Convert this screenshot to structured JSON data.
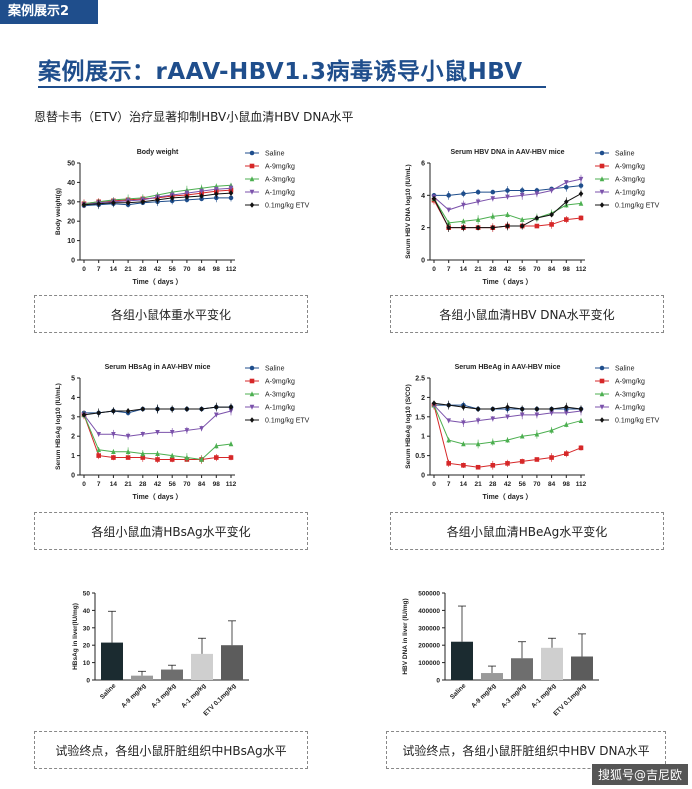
{
  "header": {
    "tag": "案例展示2",
    "title": "案例展示：rAAV-HBV1.3病毒诱导小鼠HBV",
    "subtitle": "恩替卡韦（ETV）治疗显著抑制HBV小鼠血清HBV DNA水平"
  },
  "captions": {
    "c1": "各组小鼠体重水平变化",
    "c2": "各组小鼠血清HBV DNA水平变化",
    "c3": "各组小鼠血清HBsAg水平变化",
    "c4": "各组小鼠血清HBeAg水平变化",
    "c5": "试验终点，各组小鼠肝脏组织中HBsAg水平",
    "c6": "试验终点，各组小鼠肝脏组织中HBV DNA水平"
  },
  "watermark": "搜狐号@吉尼欧",
  "colors": {
    "saline": "#1f4e8c",
    "a9": "#d62728",
    "a3": "#4caf50",
    "a1": "#7b52ab",
    "etv": "#111111"
  },
  "legend": [
    "Saline",
    "A-9mg/kg",
    "A-3mg/kg",
    "A-1mg/kg",
    "0.1mg/kg ETV"
  ],
  "chart_data": [
    {
      "id": "body-weight",
      "type": "line",
      "title": "Body weight",
      "xlabel": "Time（ days ）",
      "ylabel": "Body weight(g)",
      "ylim": [
        0,
        50
      ],
      "yticks": [
        0,
        10,
        20,
        30,
        40,
        50
      ],
      "x": [
        0,
        7,
        14,
        21,
        28,
        42,
        56,
        70,
        84,
        98,
        112
      ],
      "series": [
        {
          "name": "Saline",
          "values": [
            28,
            28.5,
            29,
            28.5,
            29.5,
            30,
            30.5,
            31,
            31.5,
            32,
            32
          ]
        },
        {
          "name": "A-9mg/kg",
          "values": [
            29,
            30,
            30.5,
            31,
            31.5,
            32,
            33,
            33.5,
            34.5,
            35.5,
            36
          ]
        },
        {
          "name": "A-3mg/kg",
          "values": [
            29,
            30,
            31,
            31.5,
            32,
            33.5,
            35,
            36,
            37,
            38,
            38.5
          ]
        },
        {
          "name": "A-1mg/kg",
          "values": [
            28.5,
            29.5,
            30,
            30.5,
            31,
            32.5,
            33.5,
            34.5,
            35.5,
            36.5,
            37
          ]
        },
        {
          "name": "0.1mg/kg ETV",
          "values": [
            28.5,
            29,
            29.5,
            29.5,
            30,
            31,
            32,
            32.5,
            33,
            34,
            34.5
          ]
        }
      ]
    },
    {
      "id": "hbv-dna",
      "type": "line",
      "title": "Serum HBV DNA in AAV-HBV mice",
      "xlabel": "Time（ days ）",
      "ylabel": "Serum HBV DNA log10 (IU/mL)",
      "ylim": [
        0,
        6
      ],
      "yticks": [
        0,
        2,
        4,
        6
      ],
      "x": [
        0,
        7,
        14,
        21,
        28,
        42,
        56,
        70,
        84,
        98,
        112
      ],
      "series": [
        {
          "name": "Saline",
          "values": [
            4,
            4,
            4.1,
            4.2,
            4.2,
            4.3,
            4.3,
            4.3,
            4.4,
            4.5,
            4.6
          ]
        },
        {
          "name": "A-9mg/kg",
          "values": [
            3.7,
            2,
            2,
            2,
            2,
            2.1,
            2.1,
            2.1,
            2.2,
            2.5,
            2.6
          ]
        },
        {
          "name": "A-3mg/kg",
          "values": [
            3.8,
            2.3,
            2.4,
            2.5,
            2.7,
            2.8,
            2.5,
            2.6,
            2.9,
            3.4,
            3.5
          ]
        },
        {
          "name": "A-1mg/kg",
          "values": [
            3.9,
            3.1,
            3.4,
            3.6,
            3.8,
            3.9,
            4,
            4.1,
            4.3,
            4.8,
            5
          ]
        },
        {
          "name": "0.1mg/kg ETV",
          "values": [
            3.8,
            2,
            2,
            2,
            2,
            2.1,
            2.1,
            2.6,
            2.8,
            3.6,
            4.1
          ]
        }
      ]
    },
    {
      "id": "hbsag",
      "type": "line",
      "title": "Serum HBsAg in AAV-HBV mice",
      "xlabel": "Time（ days ）",
      "ylabel": "Serum HBsAg log10 (IU/mL)",
      "ylim": [
        0,
        5
      ],
      "yticks": [
        0,
        1,
        2,
        3,
        4,
        5
      ],
      "x": [
        0,
        7,
        14,
        21,
        28,
        42,
        56,
        70,
        84,
        98,
        112
      ],
      "series": [
        {
          "name": "Saline",
          "values": [
            3.2,
            3.2,
            3.3,
            3.2,
            3.4,
            3.4,
            3.4,
            3.4,
            3.4,
            3.5,
            3.5
          ]
        },
        {
          "name": "A-9mg/kg",
          "values": [
            3.1,
            1,
            0.9,
            0.9,
            0.9,
            0.8,
            0.8,
            0.8,
            0.8,
            0.9,
            0.9
          ]
        },
        {
          "name": "A-3mg/kg",
          "values": [
            3.1,
            1.3,
            1.2,
            1.2,
            1.1,
            1.1,
            1,
            0.9,
            0.8,
            1.5,
            1.6
          ]
        },
        {
          "name": "A-1mg/kg",
          "values": [
            3.1,
            2.1,
            2.1,
            2,
            2.1,
            2.2,
            2.2,
            2.3,
            2.4,
            3.1,
            3.3
          ]
        },
        {
          "name": "0.1mg/kg ETV",
          "values": [
            3.1,
            3.2,
            3.3,
            3.3,
            3.4,
            3.4,
            3.4,
            3.4,
            3.4,
            3.5,
            3.5
          ]
        }
      ]
    },
    {
      "id": "hbeag",
      "type": "line",
      "title": "Serum HBeAg in AAV-HBV mice",
      "xlabel": "Time（ days ）",
      "ylabel": "Serum HBeAg log10 (S/CO)",
      "ylim": [
        0,
        2.5
      ],
      "yticks": [
        0,
        0.5,
        1,
        1.5,
        2,
        2.5
      ],
      "x": [
        0,
        7,
        14,
        21,
        28,
        42,
        56,
        70,
        84,
        98,
        112
      ],
      "series": [
        {
          "name": "Saline",
          "values": [
            1.8,
            1.8,
            1.8,
            1.7,
            1.7,
            1.7,
            1.7,
            1.7,
            1.7,
            1.7,
            1.7
          ]
        },
        {
          "name": "A-9mg/kg",
          "values": [
            1.8,
            0.3,
            0.25,
            0.2,
            0.25,
            0.3,
            0.35,
            0.4,
            0.45,
            0.55,
            0.7
          ]
        },
        {
          "name": "A-3mg/kg",
          "values": [
            1.8,
            0.9,
            0.8,
            0.8,
            0.85,
            0.9,
            1,
            1.05,
            1.15,
            1.3,
            1.4
          ]
        },
        {
          "name": "A-1mg/kg",
          "values": [
            1.8,
            1.4,
            1.35,
            1.4,
            1.45,
            1.5,
            1.55,
            1.55,
            1.6,
            1.6,
            1.65
          ]
        },
        {
          "name": "0.1mg/kg ETV",
          "values": [
            1.85,
            1.8,
            1.75,
            1.7,
            1.7,
            1.75,
            1.7,
            1.7,
            1.7,
            1.75,
            1.7
          ]
        }
      ]
    },
    {
      "id": "liver-hbsag",
      "type": "bar",
      "ylabel": "HBsAg in liver(IU/mg)",
      "ylim": [
        0,
        50
      ],
      "yticks": [
        0,
        10,
        20,
        30,
        40,
        50
      ],
      "categories": [
        "Saline",
        "A-9 mg/kg",
        "A-3 mg/kg",
        "A-1 mg/kg",
        "ETV 0.1mg/kg"
      ],
      "values": [
        21.5,
        2.5,
        6,
        15,
        20
      ],
      "errors": [
        18,
        2.5,
        2.5,
        9,
        14
      ]
    },
    {
      "id": "liver-hbvdna",
      "type": "bar",
      "ylabel": "HBV DNA in liver (IU/mg)",
      "ylim": [
        0,
        500000
      ],
      "yticks": [
        0,
        100000,
        200000,
        300000,
        400000,
        500000
      ],
      "categories": [
        "Saline",
        "A-9 mg/kg",
        "A-3 mg/kg",
        "A-1 mg/kg",
        "ETV 0.1mg/kg"
      ],
      "values": [
        220000,
        40000,
        125000,
        185000,
        135000
      ],
      "errors": [
        205000,
        40000,
        95000,
        55000,
        130000
      ]
    }
  ]
}
